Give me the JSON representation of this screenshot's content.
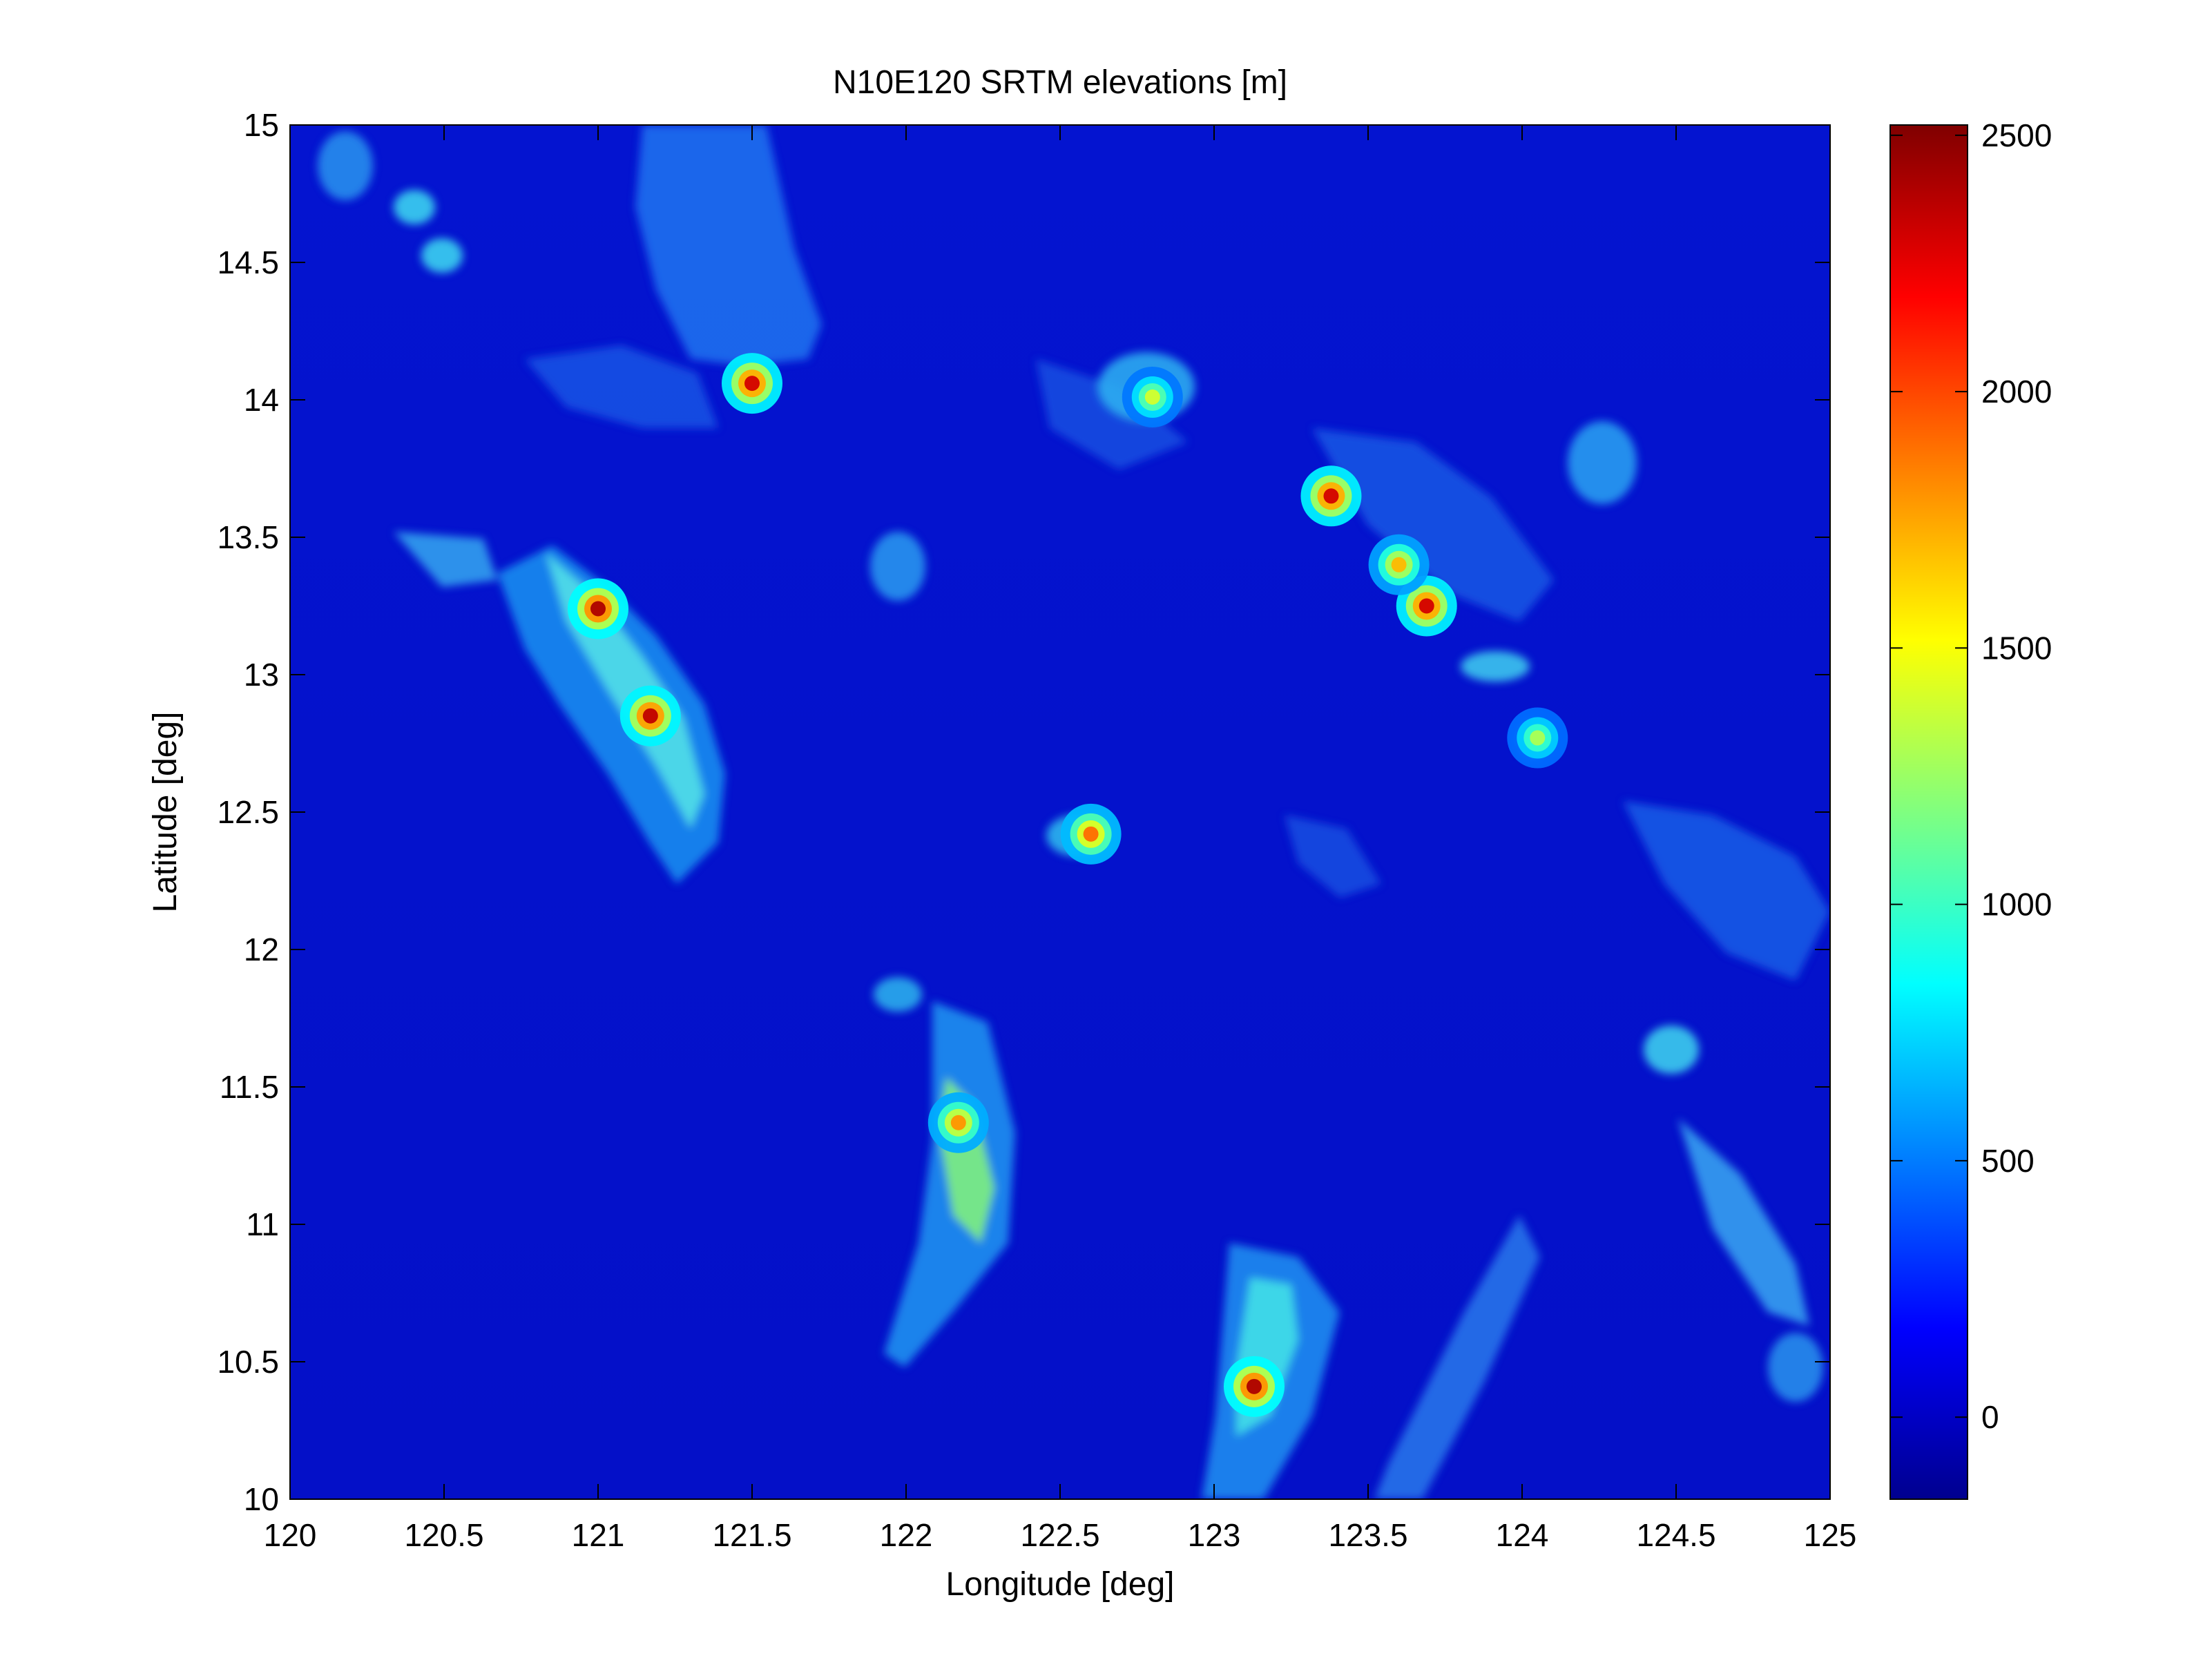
{
  "chart_data": {
    "type": "heatmap",
    "title": "N10E120 SRTM elevations [m]",
    "xlabel": "Longitude [deg]",
    "ylabel": "Latitude [deg]",
    "xlim": [
      120,
      125
    ],
    "ylim": [
      10,
      15
    ],
    "x_ticks": [
      "120",
      "120.5",
      "121",
      "121.5",
      "122",
      "122.5",
      "123",
      "123.5",
      "124",
      "124.5",
      "125"
    ],
    "y_ticks": [
      "10",
      "10.5",
      "11",
      "11.5",
      "12",
      "12.5",
      "13",
      "13.5",
      "14",
      "14.5",
      "15"
    ],
    "colorbar": {
      "colormap": "jet",
      "clim": [
        -160,
        2520
      ],
      "ticks": [
        "0",
        "500",
        "1000",
        "1500",
        "2000",
        "2500"
      ]
    },
    "grid": false,
    "peaks": [
      {
        "lon": 121.0,
        "lat": 13.24,
        "elevation": 2400
      },
      {
        "lon": 121.17,
        "lat": 12.85,
        "elevation": 2350
      },
      {
        "lon": 121.5,
        "lat": 14.06,
        "elevation": 2300
      },
      {
        "lon": 123.38,
        "lat": 13.65,
        "elevation": 2300
      },
      {
        "lon": 123.69,
        "lat": 13.25,
        "elevation": 2300
      },
      {
        "lon": 122.6,
        "lat": 12.42,
        "elevation": 1900
      },
      {
        "lon": 122.17,
        "lat": 11.37,
        "elevation": 1800
      },
      {
        "lon": 123.13,
        "lat": 10.41,
        "elevation": 2400
      },
      {
        "lon": 123.6,
        "lat": 13.4,
        "elevation": 1700
      },
      {
        "lon": 122.8,
        "lat": 14.01,
        "elevation": 1400
      },
      {
        "lon": 124.05,
        "lat": 12.77,
        "elevation": 1300
      }
    ]
  }
}
